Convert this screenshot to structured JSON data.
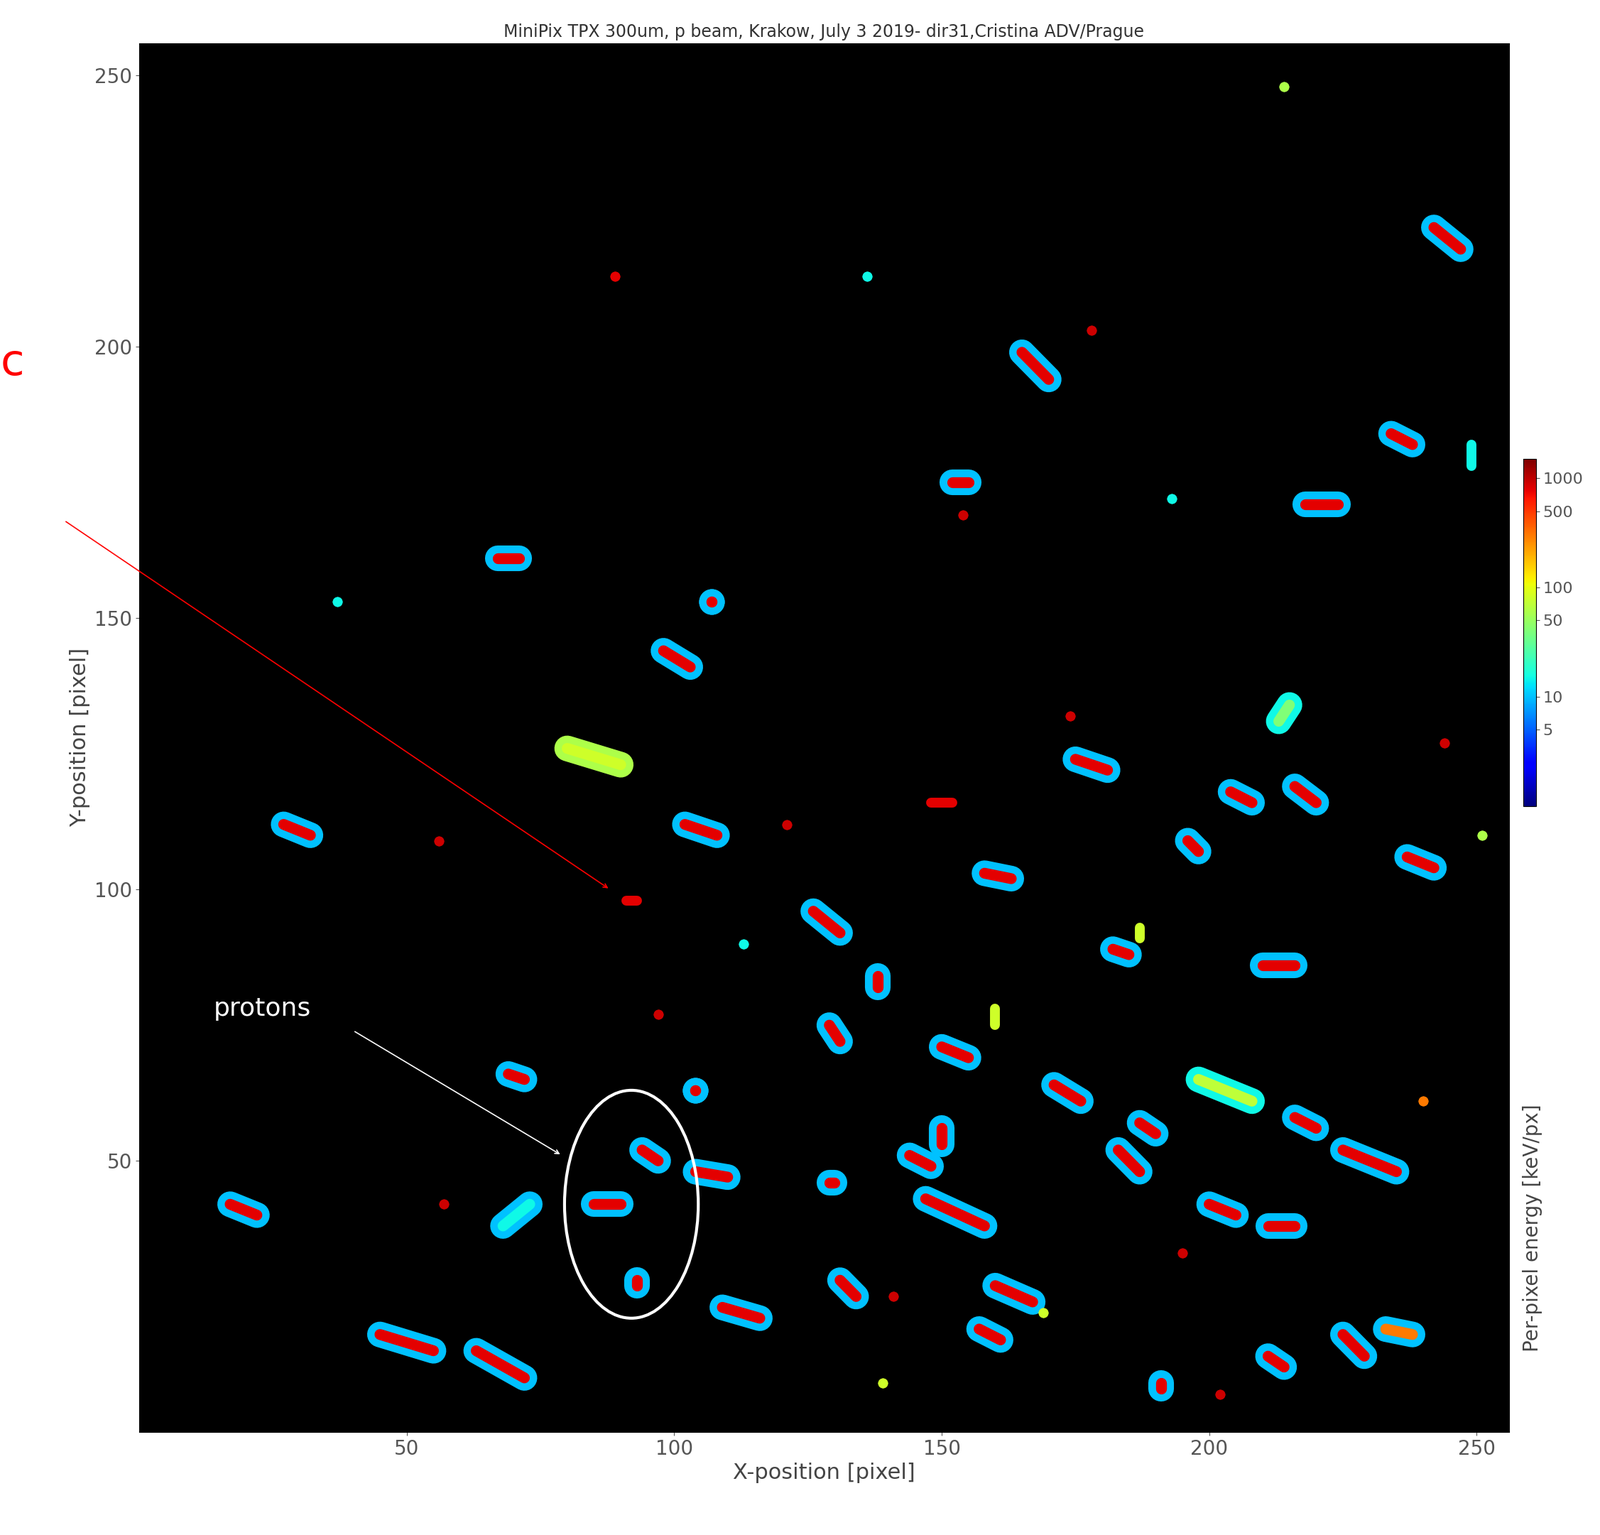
{
  "chart_data": {
    "type": "cluster_map",
    "title": "MiniPix TPX 300um, p beam, Krakow, July 3 2019- dir31,Cristina ADV/Prague",
    "x_label": "X-position [pixel]",
    "y_label": "Y-position [pixel]",
    "xlim": [
      0,
      256
    ],
    "ylim": [
      0,
      256
    ],
    "xticks": [
      50,
      100,
      150,
      200,
      250
    ],
    "yticks": [
      50,
      100,
      150,
      200,
      250
    ],
    "colorbar": {
      "label": "Per-pixel energy [keV/px]",
      "range": [
        1,
        1500
      ],
      "ticks": [
        5,
        10,
        50,
        100,
        500,
        1000
      ],
      "log": true
    },
    "clusters": [
      {
        "x": [
          214,
          214
        ],
        "y": [
          248,
          248
        ],
        "energy": [
          60,
          60
        ]
      },
      {
        "x": [
          242,
          247
        ],
        "y": [
          222,
          218
        ],
        "energy": [
          10,
          800
        ]
      },
      {
        "x": [
          89,
          89
        ],
        "y": [
          213,
          213
        ],
        "energy": [
          800,
          800
        ]
      },
      {
        "x": [
          136,
          136
        ],
        "y": [
          213,
          213
        ],
        "energy": [
          15,
          15
        ]
      },
      {
        "x": [
          165,
          170
        ],
        "y": [
          199,
          194
        ],
        "energy": [
          10,
          800
        ]
      },
      {
        "x": [
          178,
          178
        ],
        "y": [
          203,
          203
        ],
        "energy": [
          900,
          900
        ]
      },
      {
        "x": [
          234,
          238
        ],
        "y": [
          184,
          182
        ],
        "energy": [
          10,
          800
        ]
      },
      {
        "x": [
          249,
          249
        ],
        "y": [
          178,
          182
        ],
        "energy": [
          15,
          15
        ]
      },
      {
        "x": [
          152,
          155
        ],
        "y": [
          175,
          175
        ],
        "energy": [
          10,
          800
        ]
      },
      {
        "x": [
          154,
          154
        ],
        "y": [
          169,
          169
        ],
        "energy": [
          900,
          900
        ]
      },
      {
        "x": [
          193,
          193
        ],
        "y": [
          172,
          172
        ],
        "energy": [
          15,
          15
        ]
      },
      {
        "x": [
          218,
          224
        ],
        "y": [
          171,
          171
        ],
        "energy": [
          10,
          800
        ]
      },
      {
        "x": [
          67,
          71
        ],
        "y": [
          161,
          161
        ],
        "energy": [
          10,
          800
        ]
      },
      {
        "x": [
          37,
          37
        ],
        "y": [
          153,
          153
        ],
        "energy": [
          15,
          15
        ]
      },
      {
        "x": [
          107,
          107
        ],
        "y": [
          153,
          153
        ],
        "energy": [
          10,
          800
        ]
      },
      {
        "x": [
          98,
          103
        ],
        "y": [
          144,
          141
        ],
        "energy": [
          10,
          800
        ]
      },
      {
        "x": [
          80,
          90
        ],
        "y": [
          126,
          123
        ],
        "energy": [
          60,
          80
        ]
      },
      {
        "x": [
          213,
          215
        ],
        "y": [
          131,
          134
        ],
        "energy": [
          15,
          40
        ]
      },
      {
        "x": [
          174,
          174
        ],
        "y": [
          132,
          132
        ],
        "energy": [
          900,
          900
        ]
      },
      {
        "x": [
          175,
          181
        ],
        "y": [
          124,
          122
        ],
        "energy": [
          10,
          800
        ]
      },
      {
        "x": [
          204,
          208
        ],
        "y": [
          118,
          116
        ],
        "energy": [
          10,
          800
        ]
      },
      {
        "x": [
          216,
          220
        ],
        "y": [
          119,
          116
        ],
        "energy": [
          10,
          800
        ]
      },
      {
        "x": [
          244,
          244
        ],
        "y": [
          127,
          127
        ],
        "energy": [
          900,
          900
        ]
      },
      {
        "x": [
          148,
          152
        ],
        "y": [
          116,
          116
        ],
        "energy": [
          800,
          800
        ]
      },
      {
        "x": [
          27,
          32
        ],
        "y": [
          112,
          110
        ],
        "energy": [
          10,
          800
        ]
      },
      {
        "x": [
          56,
          56
        ],
        "y": [
          109,
          109
        ],
        "energy": [
          900,
          900
        ]
      },
      {
        "x": [
          102,
          108
        ],
        "y": [
          112,
          110
        ],
        "energy": [
          10,
          800
        ]
      },
      {
        "x": [
          121,
          121
        ],
        "y": [
          112,
          112
        ],
        "energy": [
          900,
          900
        ]
      },
      {
        "x": [
          196,
          198
        ],
        "y": [
          109,
          107
        ],
        "energy": [
          10,
          800
        ]
      },
      {
        "x": [
          158,
          163
        ],
        "y": [
          103,
          102
        ],
        "energy": [
          10,
          800
        ]
      },
      {
        "x": [
          237,
          242
        ],
        "y": [
          106,
          104
        ],
        "energy": [
          10,
          800
        ]
      },
      {
        "x": [
          251,
          251
        ],
        "y": [
          110,
          110
        ],
        "energy": [
          60,
          60
        ]
      },
      {
        "x": [
          91,
          93
        ],
        "y": [
          98,
          98
        ],
        "energy": [
          800,
          800
        ]
      },
      {
        "x": [
          126,
          131
        ],
        "y": [
          96,
          92
        ],
        "energy": [
          10,
          800
        ]
      },
      {
        "x": [
          113,
          113
        ],
        "y": [
          90,
          90
        ],
        "energy": [
          15,
          15
        ]
      },
      {
        "x": [
          182,
          185
        ],
        "y": [
          89,
          88
        ],
        "energy": [
          10,
          800
        ]
      },
      {
        "x": [
          187,
          187
        ],
        "y": [
          91,
          93
        ],
        "energy": [
          80,
          80
        ]
      },
      {
        "x": [
          210,
          216
        ],
        "y": [
          86,
          86
        ],
        "energy": [
          10,
          800
        ]
      },
      {
        "x": [
          138,
          138
        ],
        "y": [
          84,
          82
        ],
        "energy": [
          10,
          800
        ]
      },
      {
        "x": [
          97,
          97
        ],
        "y": [
          77,
          77
        ],
        "energy": [
          900,
          900
        ]
      },
      {
        "x": [
          160,
          160
        ],
        "y": [
          78,
          75
        ],
        "energy": [
          80,
          80
        ]
      },
      {
        "x": [
          129,
          131
        ],
        "y": [
          75,
          72
        ],
        "energy": [
          10,
          800
        ]
      },
      {
        "x": [
          150,
          155
        ],
        "y": [
          71,
          69
        ],
        "energy": [
          10,
          800
        ]
      },
      {
        "x": [
          69,
          72
        ],
        "y": [
          66,
          65
        ],
        "energy": [
          10,
          800
        ]
      },
      {
        "x": [
          104,
          104
        ],
        "y": [
          63,
          63
        ],
        "energy": [
          10,
          800
        ]
      },
      {
        "x": [
          171,
          176
        ],
        "y": [
          64,
          61
        ],
        "energy": [
          10,
          800
        ]
      },
      {
        "x": [
          198,
          208
        ],
        "y": [
          65,
          61
        ],
        "energy": [
          15,
          70
        ]
      },
      {
        "x": [
          240,
          240
        ],
        "y": [
          61,
          61
        ],
        "energy": [
          300,
          300
        ]
      },
      {
        "x": [
          216,
          220
        ],
        "y": [
          58,
          56
        ],
        "energy": [
          10,
          800
        ]
      },
      {
        "x": [
          187,
          190
        ],
        "y": [
          57,
          55
        ],
        "energy": [
          10,
          800
        ]
      },
      {
        "x": [
          183,
          187
        ],
        "y": [
          52,
          48
        ],
        "energy": [
          10,
          800
        ]
      },
      {
        "x": [
          225,
          235
        ],
        "y": [
          52,
          48
        ],
        "energy": [
          10,
          800
        ]
      },
      {
        "x": [
          150,
          150
        ],
        "y": [
          56,
          53
        ],
        "energy": [
          10,
          800
        ]
      },
      {
        "x": [
          144,
          148
        ],
        "y": [
          51,
          49
        ],
        "energy": [
          10,
          800
        ]
      },
      {
        "x": [
          94,
          97
        ],
        "y": [
          52,
          50
        ],
        "energy": [
          10,
          800
        ]
      },
      {
        "x": [
          104,
          110
        ],
        "y": [
          48,
          47
        ],
        "energy": [
          10,
          800
        ]
      },
      {
        "x": [
          129,
          130
        ],
        "y": [
          46,
          46
        ],
        "energy": [
          10,
          800
        ]
      },
      {
        "x": [
          85,
          90
        ],
        "y": [
          42,
          42
        ],
        "energy": [
          10,
          800
        ]
      },
      {
        "x": [
          17,
          22
        ],
        "y": [
          42,
          40
        ],
        "energy": [
          10,
          800
        ]
      },
      {
        "x": [
          68,
          73
        ],
        "y": [
          38,
          42
        ],
        "energy": [
          10,
          15
        ]
      },
      {
        "x": [
          57,
          57
        ],
        "y": [
          42,
          42
        ],
        "energy": [
          900,
          900
        ]
      },
      {
        "x": [
          147,
          158
        ],
        "y": [
          43,
          38
        ],
        "energy": [
          10,
          800
        ]
      },
      {
        "x": [
          200,
          205
        ],
        "y": [
          42,
          40
        ],
        "energy": [
          10,
          800
        ]
      },
      {
        "x": [
          211,
          216
        ],
        "y": [
          38,
          38
        ],
        "energy": [
          10,
          800
        ]
      },
      {
        "x": [
          195,
          195
        ],
        "y": [
          33,
          33
        ],
        "energy": [
          900,
          900
        ]
      },
      {
        "x": [
          131,
          134
        ],
        "y": [
          28,
          25
        ],
        "energy": [
          10,
          800
        ]
      },
      {
        "x": [
          141,
          141
        ],
        "y": [
          25,
          25
        ],
        "energy": [
          900,
          900
        ]
      },
      {
        "x": [
          93,
          93
        ],
        "y": [
          28,
          27
        ],
        "energy": [
          10,
          800
        ]
      },
      {
        "x": [
          160,
          167
        ],
        "y": [
          27,
          24
        ],
        "energy": [
          10,
          800
        ]
      },
      {
        "x": [
          169,
          169
        ],
        "y": [
          22,
          22
        ],
        "energy": [
          80,
          80
        ]
      },
      {
        "x": [
          109,
          116
        ],
        "y": [
          23,
          21
        ],
        "energy": [
          10,
          800
        ]
      },
      {
        "x": [
          157,
          161
        ],
        "y": [
          19,
          17
        ],
        "energy": [
          10,
          800
        ]
      },
      {
        "x": [
          211,
          214
        ],
        "y": [
          14,
          12
        ],
        "energy": [
          10,
          800
        ]
      },
      {
        "x": [
          225,
          229
        ],
        "y": [
          18,
          14
        ],
        "energy": [
          10,
          800
        ]
      },
      {
        "x": [
          233,
          238
        ],
        "y": [
          19,
          18
        ],
        "energy": [
          10,
          300
        ]
      },
      {
        "x": [
          45,
          55
        ],
        "y": [
          18,
          15
        ],
        "energy": [
          10,
          800
        ]
      },
      {
        "x": [
          63,
          72
        ],
        "y": [
          15,
          10
        ],
        "energy": [
          10,
          800
        ]
      },
      {
        "x": [
          191,
          191
        ],
        "y": [
          9,
          8
        ],
        "energy": [
          10,
          800
        ]
      },
      {
        "x": [
          202,
          202
        ],
        "y": [
          7,
          7
        ],
        "energy": [
          900,
          900
        ]
      },
      {
        "x": [
          139,
          139
        ],
        "y": [
          9,
          9
        ],
        "energy": [
          80,
          80
        ]
      }
    ],
    "annotations": [
      {
        "text": "protons",
        "position": [
          23,
          78
        ],
        "color": "white",
        "arrow": [
          [
            40,
            74
          ],
          [
            79,
            51
          ]
        ],
        "ellipse": {
          "center": [
            92,
            42
          ],
          "width": 25,
          "height": 42
        }
      },
      {
        "text": "c",
        "position": [
          -26,
          197
        ],
        "color": "red",
        "arrow": [
          [
            -14,
            168
          ],
          [
            88,
            100
          ]
        ]
      }
    ]
  }
}
